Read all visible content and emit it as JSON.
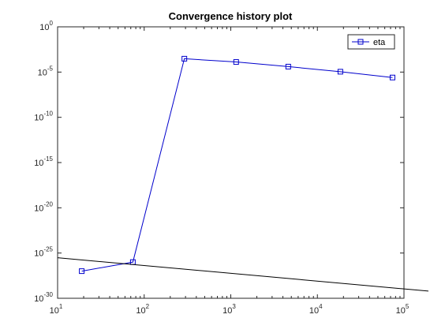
{
  "chart_data": {
    "type": "line",
    "title": "Convergence history plot",
    "xlabel": "",
    "ylabel": "",
    "xscale": "log",
    "yscale": "log",
    "xlim": [
      10,
      100000
    ],
    "ylim": [
      1e-30,
      1
    ],
    "x_tick_labels": [
      {
        "value": 10,
        "base": "10",
        "exp": "1"
      },
      {
        "value": 100,
        "base": "10",
        "exp": "2"
      },
      {
        "value": 1000,
        "base": "10",
        "exp": "3"
      },
      {
        "value": 10000,
        "base": "10",
        "exp": "4"
      },
      {
        "value": 100000,
        "base": "10",
        "exp": "5"
      }
    ],
    "y_tick_labels": [
      {
        "value": 1,
        "base": "10",
        "exp": "0"
      },
      {
        "value": 1e-05,
        "base": "10",
        "exp": "-5"
      },
      {
        "value": 1e-10,
        "base": "10",
        "exp": "-10"
      },
      {
        "value": 1e-15,
        "base": "10",
        "exp": "-15"
      },
      {
        "value": 1e-20,
        "base": "10",
        "exp": "-20"
      },
      {
        "value": 1e-25,
        "base": "10",
        "exp": "-25"
      },
      {
        "value": 1e-30,
        "base": "10",
        "exp": "-30"
      }
    ],
    "grid": false,
    "legend": "top-right",
    "series": [
      {
        "name": "eta",
        "color": "#0000cc",
        "marker": "square",
        "x": [
          19,
          74,
          291,
          1153,
          4609,
          18433,
          73729
        ],
        "y": [
          1e-27,
          1e-26,
          0.0003,
          0.00013,
          4e-05,
          1.1e-05,
          2.5e-06
        ]
      },
      {
        "color": "#000000",
        "marker": "none",
        "x": [
          10,
          200000
        ],
        "y": [
          3e-26,
          6e-30
        ]
      }
    ]
  }
}
